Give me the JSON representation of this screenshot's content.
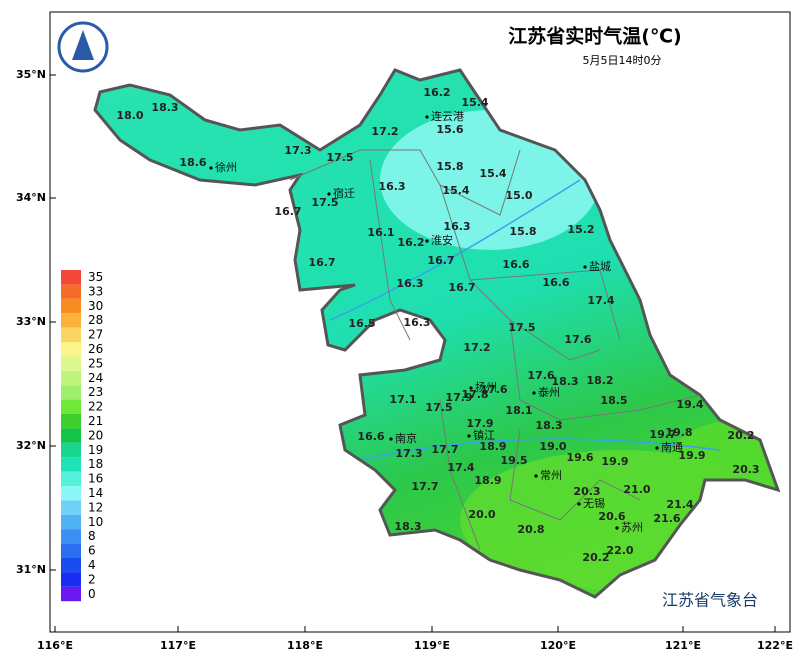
{
  "header": {
    "title": "江苏省实时气温(℃)",
    "subtitle": "5月5日14时0分"
  },
  "x_axis": [
    "116°E",
    "117°E",
    "118°E",
    "119°E",
    "120°E",
    "121°E",
    "122°E"
  ],
  "y_axis": [
    "35°N",
    "34°N",
    "33°N",
    "32°N",
    "31°N"
  ],
  "legend": [
    {
      "label": "35",
      "color": "#f2483a"
    },
    {
      "label": "33",
      "color": "#f66a2a"
    },
    {
      "label": "30",
      "color": "#f88c1e"
    },
    {
      "label": "28",
      "color": "#fbb23b"
    },
    {
      "label": "27",
      "color": "#fcd465"
    },
    {
      "label": "26",
      "color": "#fbf48a"
    },
    {
      "label": "25",
      "color": "#ddf78d"
    },
    {
      "label": "24",
      "color": "#bff57e"
    },
    {
      "label": "23",
      "color": "#9ef06a"
    },
    {
      "label": "22",
      "color": "#6fe838"
    },
    {
      "label": "21",
      "color": "#3fcf2a"
    },
    {
      "label": "20",
      "color": "#14c447"
    },
    {
      "label": "19",
      "color": "#17d690"
    },
    {
      "label": "18",
      "color": "#1de3b6"
    },
    {
      "label": "16",
      "color": "#54f0d9"
    },
    {
      "label": "14",
      "color": "#8cf7f7"
    },
    {
      "label": "12",
      "color": "#6fd3f7"
    },
    {
      "label": "10",
      "color": "#4fb2f5"
    },
    {
      "label": "8",
      "color": "#3b8ff2"
    },
    {
      "label": "6",
      "color": "#2c6ef0"
    },
    {
      "label": "4",
      "color": "#1a4cf0"
    },
    {
      "label": "2",
      "color": "#1a2cf2"
    },
    {
      "label": "0",
      "color": "#6a1af0"
    }
  ],
  "cities": [
    "连云港",
    "徐州",
    "宿迁",
    "淮安",
    "盐城",
    "扬州",
    "泰州",
    "南京",
    "镇江",
    "南通",
    "常州",
    "无锡",
    "苏州"
  ],
  "temperatures": [
    "16.2",
    "15.4",
    "18.3",
    "18.0",
    "15.6",
    "17.2",
    "17.3",
    "17.5",
    "18.6",
    "15.8",
    "15.4",
    "16.3",
    "15.4",
    "15.0",
    "17.5",
    "16.7",
    "16.3",
    "15.8",
    "15.2",
    "16.1",
    "16.2",
    "16.7",
    "16.7",
    "16.6",
    "16.6",
    "16.3",
    "16.7",
    "17.4",
    "16.5",
    "16.3",
    "17.5",
    "17.6",
    "17.2",
    "17.6",
    "17.6",
    "18.3",
    "18.2",
    "17.8",
    "17.1",
    "17.5",
    "17.9",
    "18.5",
    "18.1",
    "19.4",
    "17.9",
    "18.3",
    "16.6",
    "19.7",
    "19.8",
    "20.2",
    "17.7",
    "18.9",
    "19.0",
    "17.3",
    "19.6",
    "19.5",
    "19.9",
    "19.9",
    "17.4",
    "20.3",
    "18.9",
    "17.7",
    "20.3",
    "21.0",
    "21.4",
    "20.0",
    "20.6",
    "21.6",
    "18.3",
    "20.8",
    "22.0",
    "20.2"
  ],
  "footer": "江苏省气象台"
}
